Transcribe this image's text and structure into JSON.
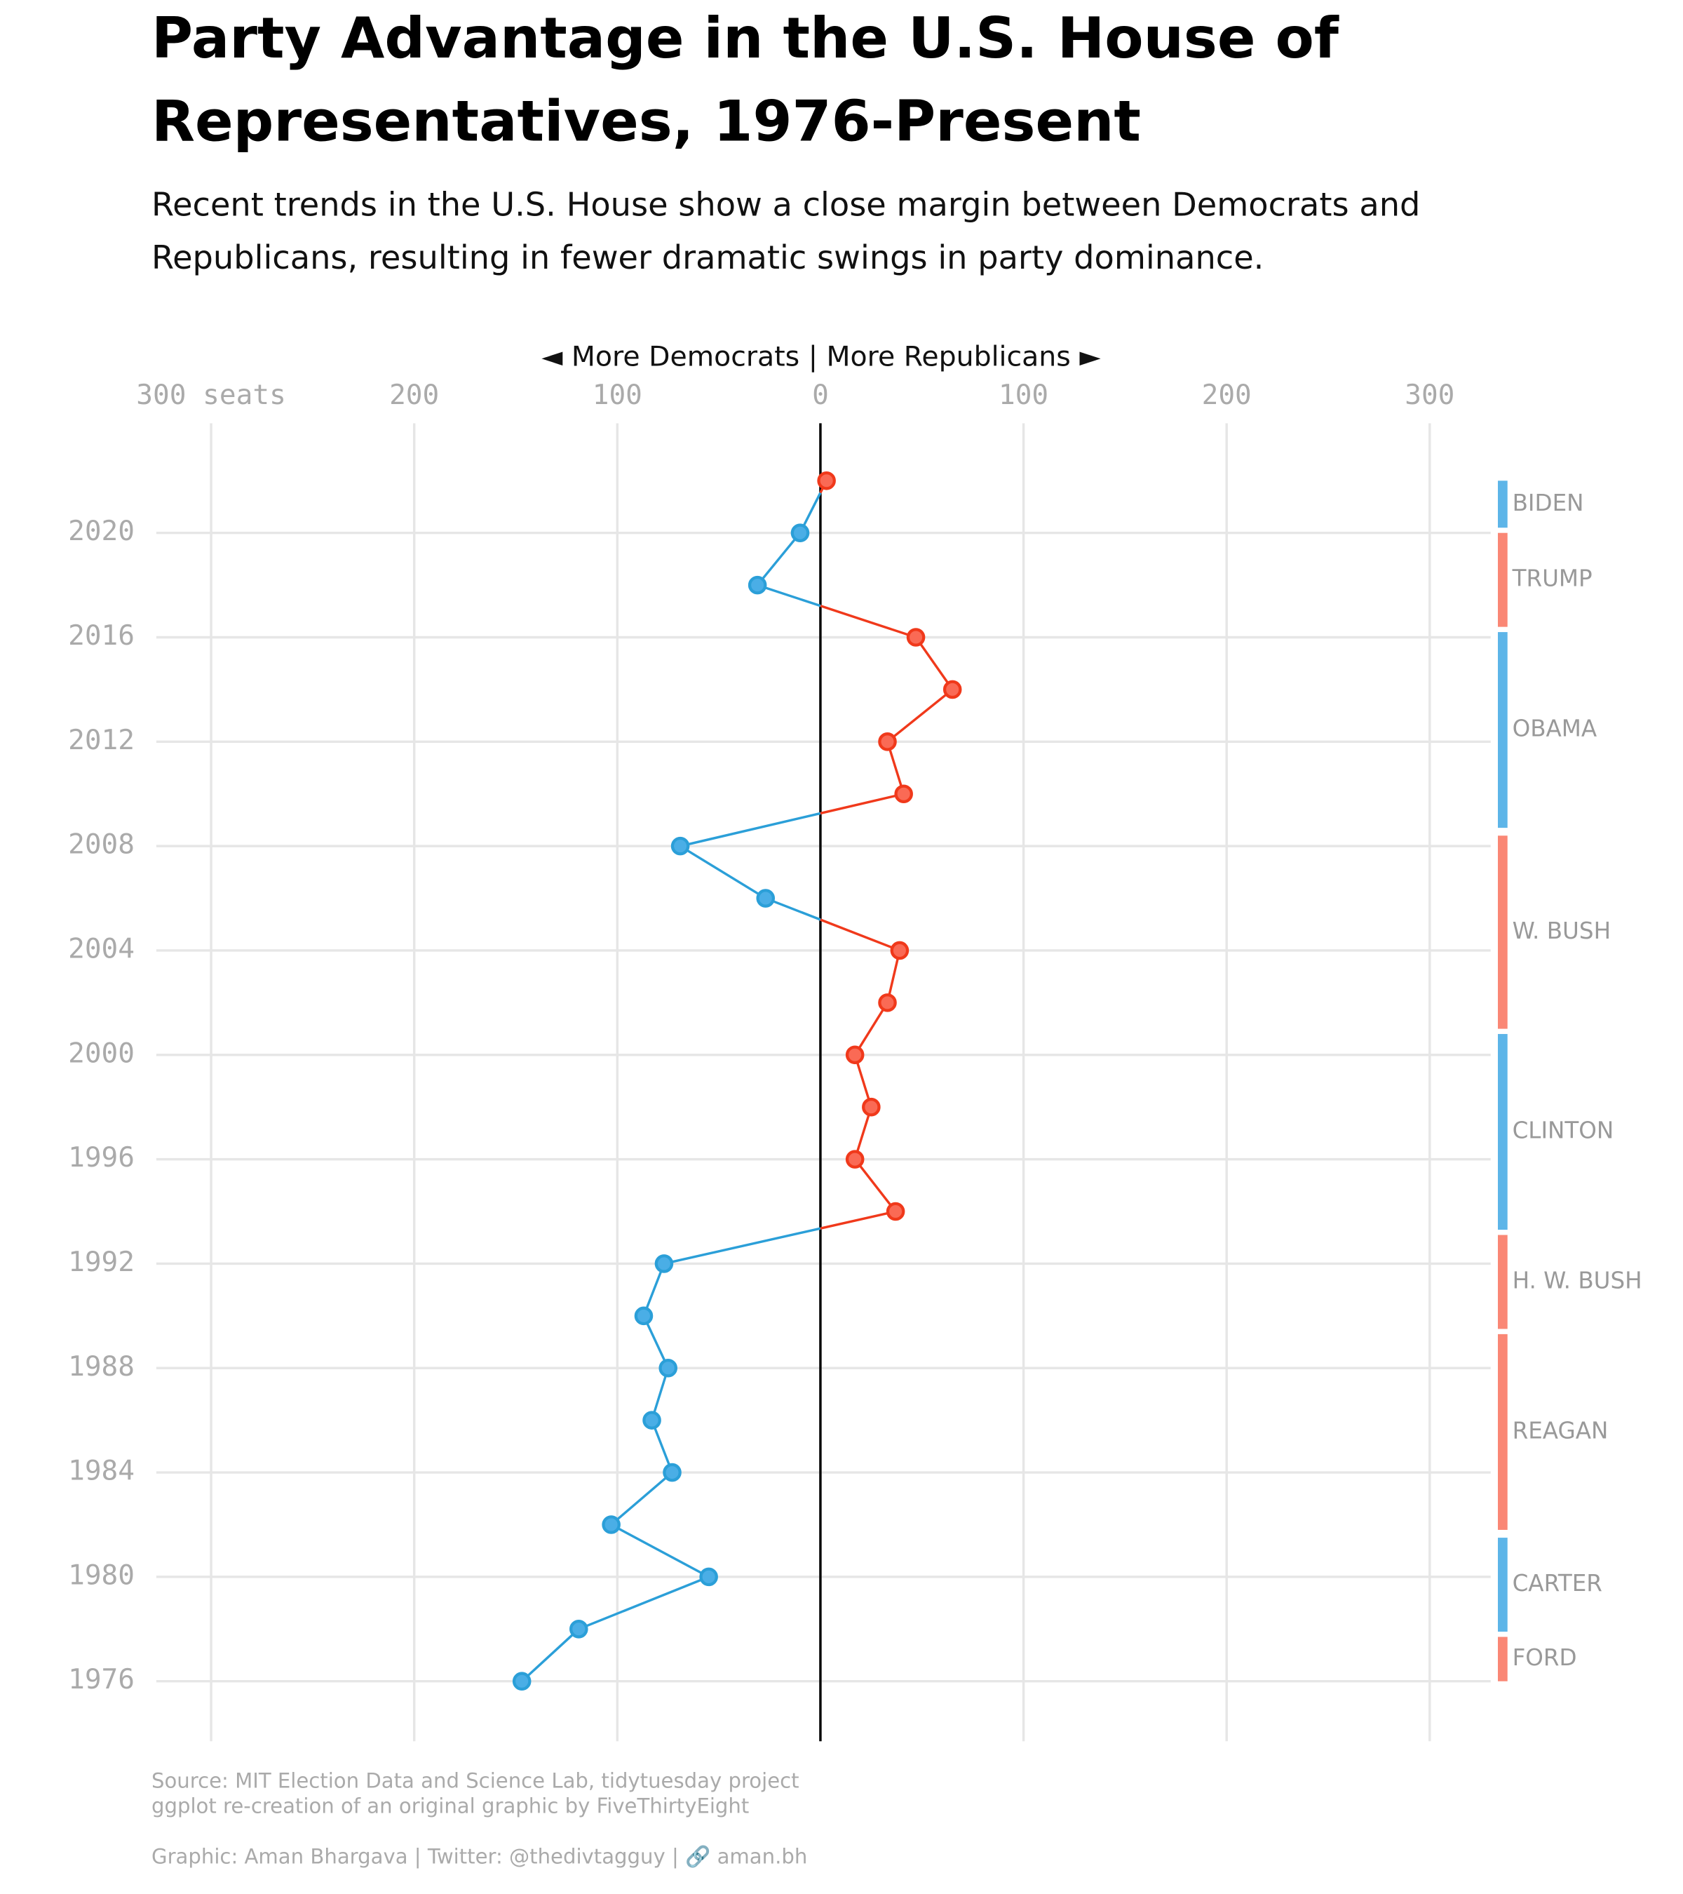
{
  "chart_data": {
    "type": "line",
    "title": [
      "Party Advantage in the U.S. House of",
      "Representatives, 1976-Present"
    ],
    "subtitle": [
      "Recent trends in the U.S. House show a close margin between Democrats and",
      "Republicans, resulting in fewer dramatic swings in party dominance."
    ],
    "axis_annotation": "◄ More Democrats | More Republicans ►",
    "x": [
      1976,
      1978,
      1980,
      1982,
      1984,
      1986,
      1988,
      1990,
      1992,
      1994,
      1996,
      1998,
      2000,
      2002,
      2004,
      2006,
      2008,
      2010,
      2012,
      2014,
      2016,
      2018,
      2020,
      2022
    ],
    "values": [
      -147,
      -119,
      -55,
      -103,
      -73,
      -83,
      -75,
      -87,
      -77,
      37,
      17,
      25,
      17,
      33,
      39,
      -27,
      -69,
      41,
      33,
      65,
      47,
      -31,
      -10,
      3
    ],
    "dem_color": "#2b9fd8",
    "rep_color": "#f0391b",
    "xlim": [
      -327,
      330
    ],
    "xticks": [
      {
        "value": -300,
        "label": "300 seats"
      },
      {
        "value": -200,
        "label": "200"
      },
      {
        "value": -100,
        "label": "100"
      },
      0,
      100,
      200,
      300
    ],
    "ylim": [
      1973.7,
      2024.2
    ],
    "yticks": [
      1976,
      1980,
      1984,
      1988,
      1992,
      1996,
      2000,
      2004,
      2008,
      2012,
      2016,
      2020
    ],
    "grid": true,
    "presidents": [
      {
        "name": "BIDEN",
        "start": 2020.2,
        "end": 2022.0,
        "color": "#5db5e8"
      },
      {
        "name": "TRUMP",
        "start": 2016.4,
        "end": 2020.0,
        "color": "#fa8775"
      },
      {
        "name": "OBAMA",
        "start": 2008.7,
        "end": 2016.2,
        "color": "#5db5e8"
      },
      {
        "name": "W. BUSH",
        "start": 2001.0,
        "end": 2008.4,
        "color": "#fa8775"
      },
      {
        "name": "CLINTON",
        "start": 1993.3,
        "end": 2000.8,
        "color": "#5db5e8"
      },
      {
        "name": "H. W. BUSH",
        "start": 1989.5,
        "end": 1993.1,
        "color": "#fa8775"
      },
      {
        "name": "REAGAN",
        "start": 1981.8,
        "end": 1989.3,
        "color": "#fa8775"
      },
      {
        "name": "CARTER",
        "start": 1977.9,
        "end": 1981.5,
        "color": "#5db5e8"
      },
      {
        "name": "FORD",
        "start": 1976.0,
        "end": 1977.7,
        "color": "#fa8775"
      }
    ],
    "caption": [
      "Source: MIT Election Data and Science Lab, tidytuesday project",
      "ggplot re-creation of an original graphic by FiveThirtyEight",
      "Graphic: Aman Bhargava | Twitter: @thedivtagguy | 🔗 aman.bh"
    ]
  }
}
